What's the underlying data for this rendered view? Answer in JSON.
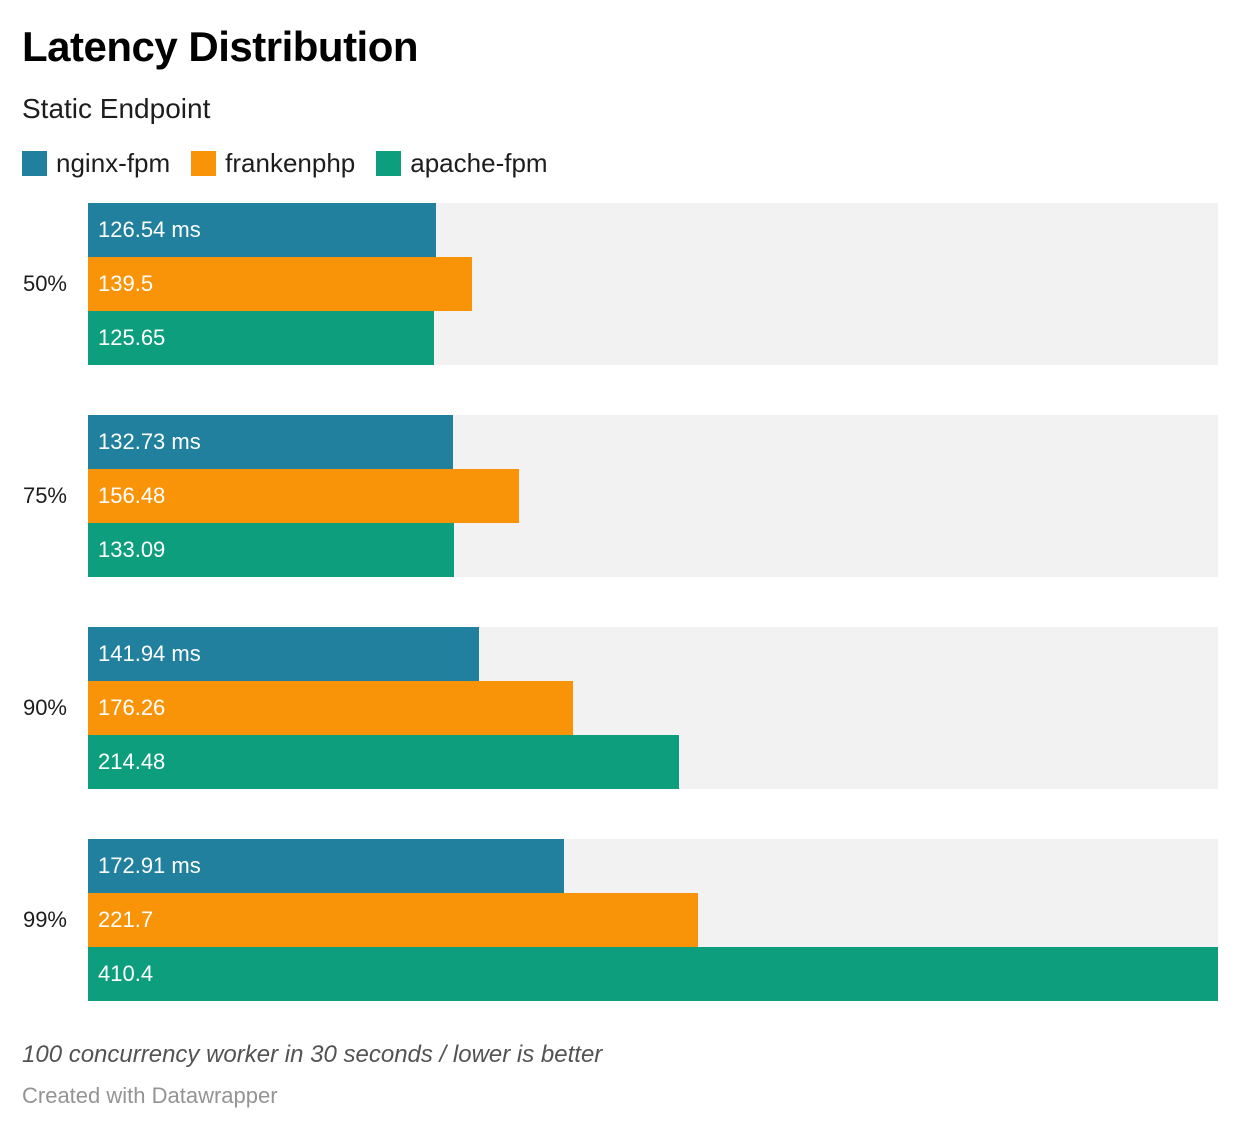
{
  "header": {
    "title": "Latency Distribution",
    "subtitle": "Static Endpoint"
  },
  "legend": [
    {
      "label": "nginx-fpm",
      "color": "#20809d"
    },
    {
      "label": "frankenphp",
      "color": "#f99408"
    },
    {
      "label": "apache-fpm",
      "color": "#0d9e7d"
    }
  ],
  "chart_data": {
    "type": "bar",
    "orientation": "horizontal",
    "title": "Latency Distribution",
    "subtitle": "Static Endpoint",
    "categories": [
      "50%",
      "75%",
      "90%",
      "99%"
    ],
    "series": [
      {
        "name": "nginx-fpm",
        "color": "#20809d",
        "values": [
          126.54,
          132.73,
          141.94,
          172.91
        ],
        "labels": [
          "126.54 ms",
          "132.73 ms",
          "141.94 ms",
          "172.91 ms"
        ]
      },
      {
        "name": "frankenphp",
        "color": "#f99408",
        "values": [
          139.5,
          156.48,
          176.26,
          221.7
        ],
        "labels": [
          "139.5",
          "156.48",
          "176.26",
          "221.7"
        ]
      },
      {
        "name": "apache-fpm",
        "color": "#0d9e7d",
        "values": [
          125.65,
          133.09,
          214.48,
          410.4
        ],
        "labels": [
          "125.65",
          "133.09",
          "214.48",
          "410.4"
        ]
      }
    ],
    "xlim": [
      0,
      410.4
    ],
    "unit": "ms",
    "track_color": "#f2f2f2",
    "value_label_color": "#ffffff",
    "grid": false,
    "legend_position": "top"
  },
  "footer": {
    "note": "100 concurrency worker in 30 seconds / lower is better",
    "credit": "Created with Datawrapper"
  }
}
